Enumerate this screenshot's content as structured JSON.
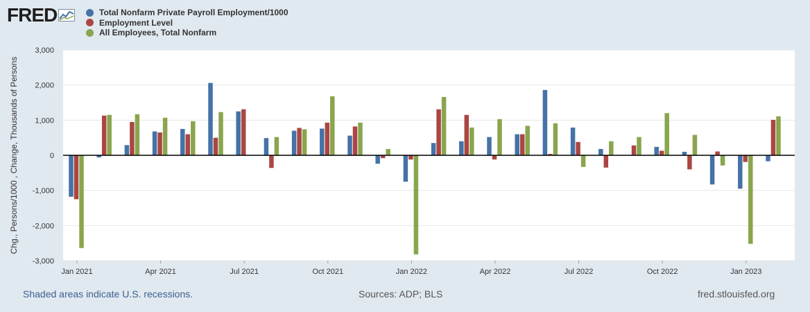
{
  "header": {
    "logo_text": "FRED",
    "logo_icon": "fred-chart-icon"
  },
  "legend": [
    {
      "label": "Total Nonfarm Private Payroll Employment/1000",
      "color": "#4572a7"
    },
    {
      "label": "Employment Level",
      "color": "#aa4643"
    },
    {
      "label": "All Employees, Total Nonfarm",
      "color": "#89a54e"
    }
  ],
  "footer": {
    "recession_note": "Shaded areas indicate U.S. recessions.",
    "sources": "Sources: ADP; BLS",
    "site": "fred.stlouisfed.org"
  },
  "chart_data": {
    "type": "bar",
    "ylabel": "Chg., Persons/1000 , Change, Thousands of Persons",
    "ylim": [
      -3000,
      3000
    ],
    "yticks": [
      -3000,
      -2000,
      -1000,
      0,
      1000,
      2000,
      3000
    ],
    "ytick_labels": [
      "-3,000",
      "-2,000",
      "-1,000",
      "0",
      "1,000",
      "2,000",
      "3,000"
    ],
    "grid": true,
    "categories": [
      "2021-01",
      "2021-02",
      "2021-03",
      "2021-04",
      "2021-05",
      "2021-06",
      "2021-07",
      "2021-08",
      "2021-09",
      "2021-10",
      "2021-11",
      "2021-12",
      "2022-01",
      "2022-02",
      "2022-03",
      "2022-04",
      "2022-05",
      "2022-06",
      "2022-07",
      "2022-08",
      "2022-09",
      "2022-10",
      "2022-11",
      "2022-12",
      "2023-01",
      "2023-02"
    ],
    "xtick_labels": [
      {
        "index": 0,
        "label": "Jan 2021"
      },
      {
        "index": 3,
        "label": "Apr 2021"
      },
      {
        "index": 6,
        "label": "Jul 2021"
      },
      {
        "index": 9,
        "label": "Oct 2021"
      },
      {
        "index": 12,
        "label": "Jan 2022"
      },
      {
        "index": 15,
        "label": "Apr 2022"
      },
      {
        "index": 18,
        "label": "Jul 2022"
      },
      {
        "index": 21,
        "label": "Oct 2022"
      },
      {
        "index": 24,
        "label": "Jan 2023"
      }
    ],
    "series": [
      {
        "name": "Total Nonfarm Private Payroll Employment/1000",
        "color": "#4572a7",
        "values": [
          -1180,
          -60,
          290,
          680,
          750,
          2060,
          1250,
          490,
          700,
          760,
          560,
          -240,
          -750,
          350,
          400,
          520,
          600,
          1860,
          790,
          180,
          0,
          240,
          100,
          -830,
          -950,
          -170
        ]
      },
      {
        "name": "Employment Level",
        "color": "#aa4643",
        "values": [
          -1250,
          1130,
          950,
          650,
          600,
          500,
          1310,
          -360,
          780,
          930,
          820,
          -80,
          -120,
          1310,
          1150,
          -120,
          600,
          40,
          380,
          -350,
          280,
          130,
          -400,
          110,
          -190,
          1010
        ]
      },
      {
        "name": "All Employees, Total Nonfarm",
        "color": "#89a54e",
        "values": [
          -2640,
          1150,
          1170,
          1070,
          970,
          1230,
          0,
          520,
          740,
          1680,
          930,
          180,
          -2820,
          1660,
          790,
          1030,
          840,
          910,
          -330,
          400,
          520,
          1200,
          580,
          -290,
          -2520,
          1110
        ]
      }
    ]
  }
}
